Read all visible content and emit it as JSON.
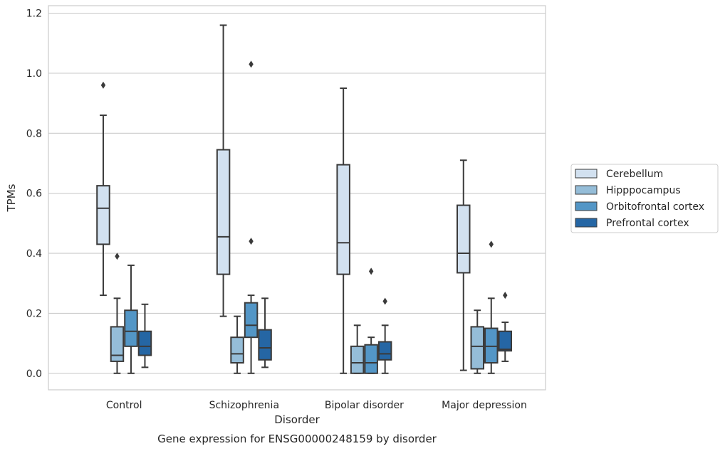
{
  "chart_data": {
    "type": "boxplot",
    "caption": "Gene expression for ENSG00000248159 by disorder",
    "xlabel": "Disorder",
    "ylabel": "TPMs",
    "ylim": [
      -0.055,
      1.225
    ],
    "yticks": [
      0.0,
      0.2,
      0.4,
      0.6,
      0.8,
      1.0,
      1.2
    ],
    "ytick_labels": [
      "0.0",
      "0.2",
      "0.4",
      "0.6",
      "0.8",
      "1.0",
      "1.2"
    ],
    "grid": "horizontal",
    "legend_position": "right",
    "categories": [
      "Control",
      "Schizophrenia",
      "Bipolar disorder",
      "Major depression"
    ],
    "series": [
      {
        "name": "Cerebellum",
        "color": "#d2e1f0",
        "boxes": [
          {
            "whislo": 0.26,
            "q1": 0.43,
            "med": 0.55,
            "q3": 0.625,
            "whishi": 0.86,
            "fliers": [
              0.96
            ]
          },
          {
            "whislo": 0.19,
            "q1": 0.33,
            "med": 0.455,
            "q3": 0.745,
            "whishi": 1.16,
            "fliers": []
          },
          {
            "whislo": 0.0,
            "q1": 0.33,
            "med": 0.435,
            "q3": 0.695,
            "whishi": 0.95,
            "fliers": []
          },
          {
            "whislo": 0.01,
            "q1": 0.335,
            "med": 0.4,
            "q3": 0.56,
            "whishi": 0.71,
            "fliers": []
          }
        ]
      },
      {
        "name": "Hipppocampus",
        "color": "#95bdd8",
        "boxes": [
          {
            "whislo": 0.0,
            "q1": 0.04,
            "med": 0.06,
            "q3": 0.155,
            "whishi": 0.25,
            "fliers": [
              0.39
            ]
          },
          {
            "whislo": 0.0,
            "q1": 0.035,
            "med": 0.065,
            "q3": 0.12,
            "whishi": 0.19,
            "fliers": []
          },
          {
            "whislo": 0.0,
            "q1": 0.0,
            "med": 0.035,
            "q3": 0.09,
            "whishi": 0.16,
            "fliers": []
          },
          {
            "whislo": 0.0,
            "q1": 0.015,
            "med": 0.09,
            "q3": 0.155,
            "whishi": 0.21,
            "fliers": []
          }
        ]
      },
      {
        "name": "Orbitofrontal cortex",
        "color": "#5396c6",
        "boxes": [
          {
            "whislo": 0.0,
            "q1": 0.09,
            "med": 0.14,
            "q3": 0.21,
            "whishi": 0.36,
            "fliers": []
          },
          {
            "whislo": 0.0,
            "q1": 0.12,
            "med": 0.16,
            "q3": 0.235,
            "whishi": 0.26,
            "fliers": [
              0.44,
              1.03
            ]
          },
          {
            "whislo": 0.0,
            "q1": 0.0,
            "med": 0.035,
            "q3": 0.095,
            "whishi": 0.12,
            "fliers": [
              0.34
            ]
          },
          {
            "whislo": 0.0,
            "q1": 0.035,
            "med": 0.09,
            "q3": 0.15,
            "whishi": 0.25,
            "fliers": [
              0.43
            ]
          }
        ]
      },
      {
        "name": "Prefrontal cortex",
        "color": "#2566a4",
        "boxes": [
          {
            "whislo": 0.02,
            "q1": 0.06,
            "med": 0.09,
            "q3": 0.14,
            "whishi": 0.23,
            "fliers": []
          },
          {
            "whislo": 0.02,
            "q1": 0.045,
            "med": 0.085,
            "q3": 0.145,
            "whishi": 0.25,
            "fliers": []
          },
          {
            "whislo": 0.0,
            "q1": 0.045,
            "med": 0.065,
            "q3": 0.105,
            "whishi": 0.16,
            "fliers": [
              0.24
            ]
          },
          {
            "whislo": 0.04,
            "q1": 0.075,
            "med": 0.08,
            "q3": 0.14,
            "whishi": 0.17,
            "fliers": [
              0.26
            ]
          }
        ]
      }
    ]
  }
}
